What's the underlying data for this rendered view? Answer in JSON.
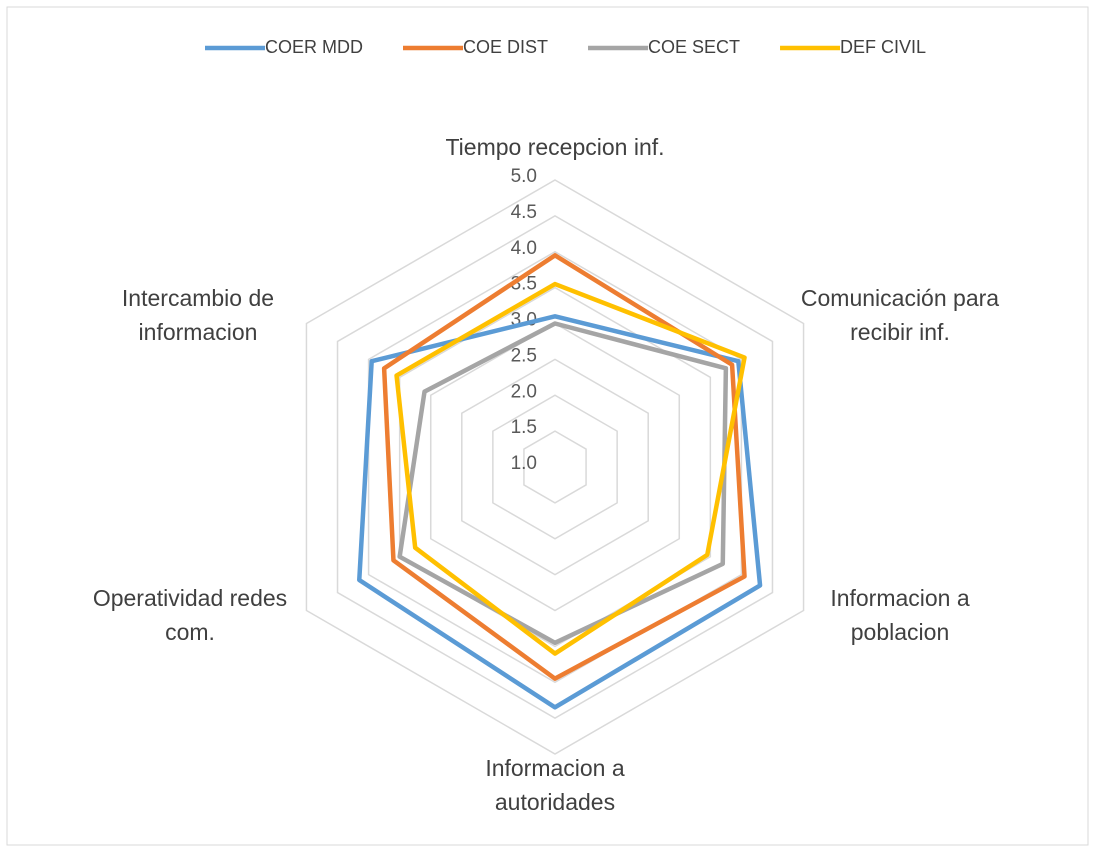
{
  "chart_data": {
    "type": "radar",
    "categories": [
      "Tiempo recepcion inf.",
      "Comunicación para recibir inf.",
      "Informacion a poblacion",
      "Informacion a autoridades",
      "Operatividad redes com.",
      "Intercambio de informacion"
    ],
    "series": [
      {
        "name": "COER MDD",
        "color": "#5b9bd5",
        "values": [
          3.1,
          3.95,
          4.3,
          4.35,
          4.15,
          3.95
        ]
      },
      {
        "name": "COE DIST",
        "color": "#ed7d31",
        "values": [
          3.95,
          3.85,
          4.05,
          3.95,
          3.6,
          3.75
        ]
      },
      {
        "name": "COE SECT",
        "color": "#a5a5a5",
        "values": [
          3.0,
          3.75,
          3.7,
          3.45,
          3.5,
          3.1
        ]
      },
      {
        "name": "DEF CIVIL",
        "color": "#ffc000",
        "values": [
          3.55,
          4.05,
          3.45,
          3.6,
          3.25,
          3.55
        ]
      }
    ],
    "rlim": [
      1,
      5
    ],
    "rticks": [
      {
        "value": 1,
        "label": "1.0"
      },
      {
        "value": 1.5,
        "label": "1.5"
      },
      {
        "value": 2,
        "label": "2.0"
      },
      {
        "value": 2.5,
        "label": "2.5"
      },
      {
        "value": 3,
        "label": "3.0"
      },
      {
        "value": 3.5,
        "label": "3.5"
      },
      {
        "value": 4,
        "label": "4.0"
      },
      {
        "value": 4.5,
        "label": "4.5"
      },
      {
        "value": 5,
        "label": "5.0"
      }
    ],
    "grid": true,
    "legend": "top"
  }
}
